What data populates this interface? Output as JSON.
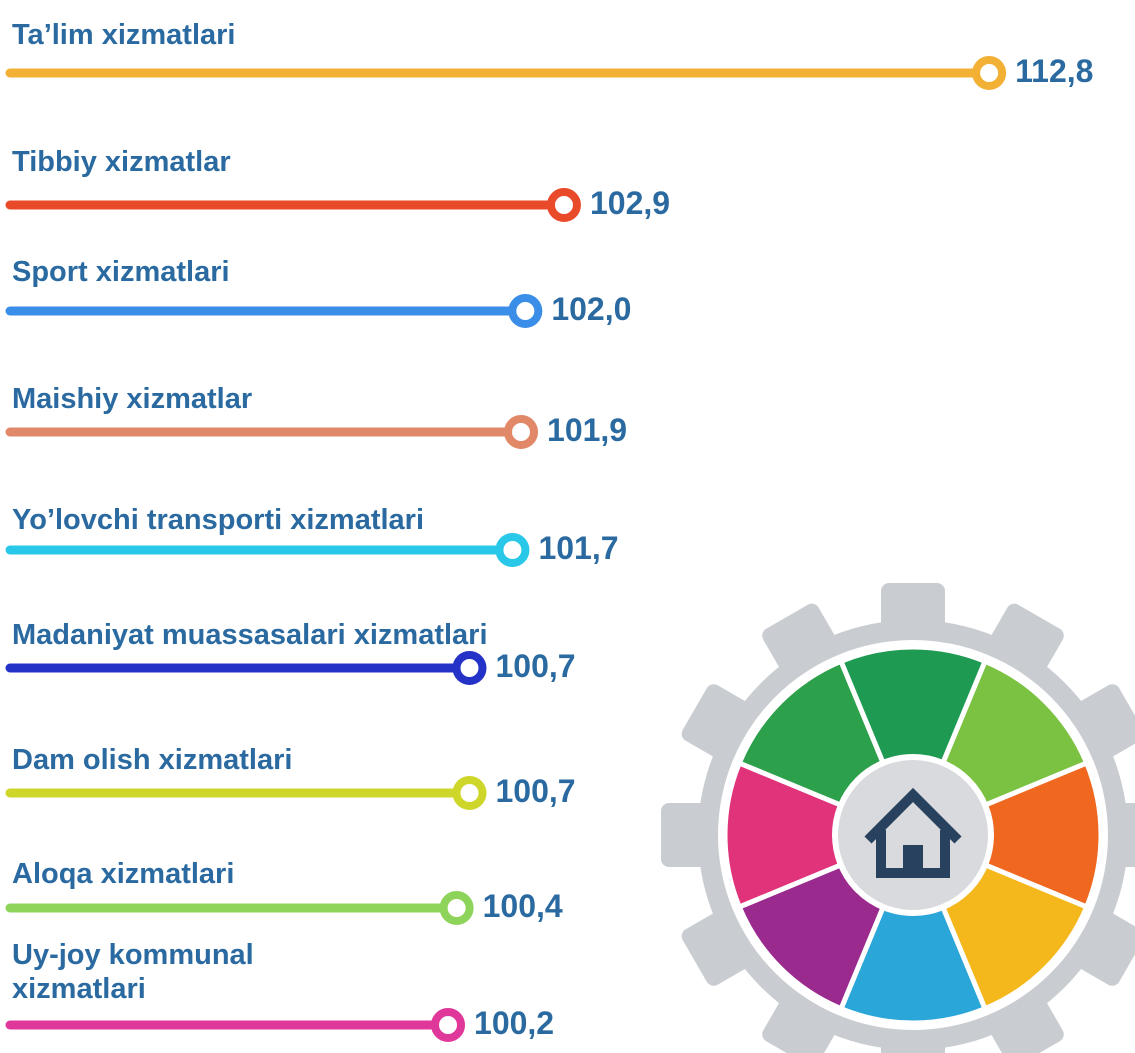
{
  "chart_data": {
    "type": "lollipop",
    "categories": [
      "Ta’lim xizmatlari",
      "Tibbiy xizmatlar",
      "Sport xizmatlari",
      "Maishiy xizmatlar",
      "Yo’lovchi transporti xizmatlari",
      "Madaniyat muassasalari xizmatlari",
      "Dam olish xizmatlari",
      "Aloqa xizmatlari",
      "Uy-joy kommunal\nxizmatlari"
    ],
    "values": [
      112.8,
      102.9,
      102.0,
      101.9,
      101.7,
      100.7,
      100.7,
      100.4,
      100.2
    ],
    "value_labels": [
      "112,8",
      "102,9",
      "102,0",
      "101,9",
      "101,7",
      "100,7",
      "100,7",
      "100,4",
      "100,2"
    ],
    "colors": [
      "#f2b134",
      "#e84a2a",
      "#3b8ee8",
      "#e08868",
      "#29c8e8",
      "#2432c8",
      "#cfd62a",
      "#8ed45a",
      "#e0389a"
    ],
    "xlim": [
      90,
      113.1
    ]
  }
}
